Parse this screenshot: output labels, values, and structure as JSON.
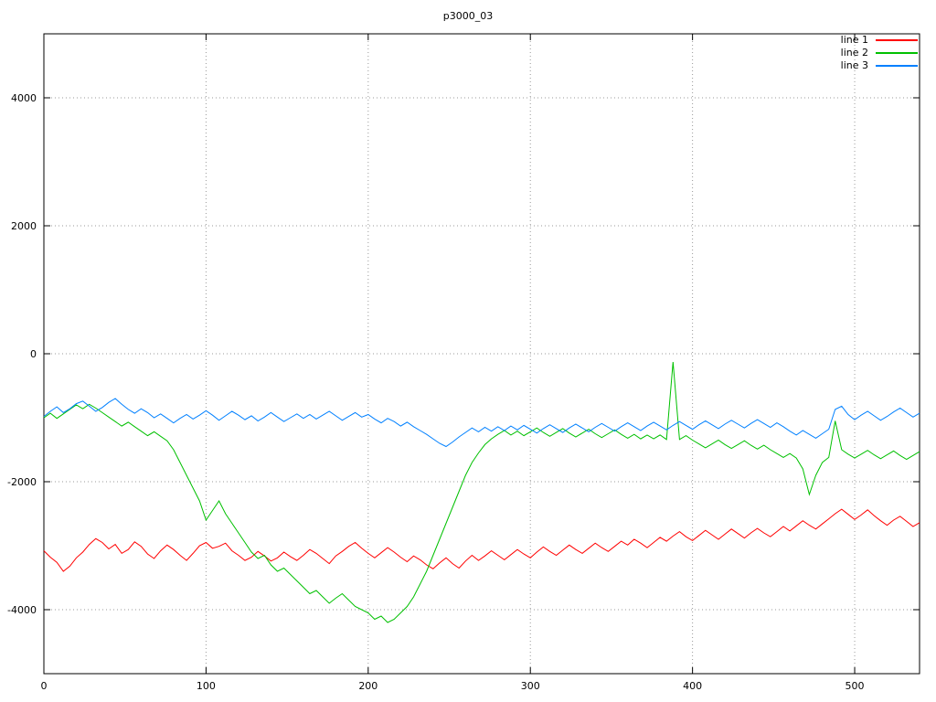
{
  "chart_data": {
    "type": "line",
    "title": "p3000_03",
    "xlabel": "",
    "ylabel": "",
    "xlim": [
      0,
      540
    ],
    "ylim": [
      -5000,
      5000
    ],
    "xticks": [
      0,
      100,
      200,
      300,
      400,
      500
    ],
    "yticks": [
      -4000,
      -2000,
      0,
      2000,
      4000
    ],
    "grid": true,
    "grid_color": "#9a9a9a",
    "border_color": "#000000",
    "legend_position": "top-right",
    "x_start": 0,
    "x_step": 4,
    "series": [
      {
        "name": "line 1",
        "color": "#ff0000",
        "values": [
          -3080,
          -3180,
          -3260,
          -3400,
          -3320,
          -3190,
          -3100,
          -2980,
          -2890,
          -2950,
          -3050,
          -2980,
          -3120,
          -3060,
          -2940,
          -3010,
          -3130,
          -3200,
          -3080,
          -2990,
          -3060,
          -3150,
          -3230,
          -3120,
          -3000,
          -2950,
          -3040,
          -3010,
          -2960,
          -3080,
          -3150,
          -3230,
          -3180,
          -3090,
          -3160,
          -3240,
          -3190,
          -3100,
          -3170,
          -3230,
          -3150,
          -3060,
          -3120,
          -3200,
          -3280,
          -3160,
          -3090,
          -3010,
          -2950,
          -3040,
          -3120,
          -3190,
          -3110,
          -3030,
          -3100,
          -3180,
          -3250,
          -3160,
          -3220,
          -3300,
          -3360,
          -3270,
          -3190,
          -3280,
          -3350,
          -3240,
          -3150,
          -3230,
          -3160,
          -3080,
          -3150,
          -3220,
          -3140,
          -3060,
          -3130,
          -3190,
          -3100,
          -3020,
          -3090,
          -3150,
          -3070,
          -2990,
          -3060,
          -3120,
          -3040,
          -2960,
          -3030,
          -3090,
          -3010,
          -2930,
          -2990,
          -2900,
          -2960,
          -3030,
          -2950,
          -2870,
          -2930,
          -2850,
          -2780,
          -2860,
          -2920,
          -2840,
          -2760,
          -2830,
          -2900,
          -2820,
          -2740,
          -2810,
          -2880,
          -2800,
          -2730,
          -2800,
          -2860,
          -2780,
          -2700,
          -2770,
          -2690,
          -2610,
          -2680,
          -2740,
          -2660,
          -2580,
          -2500,
          -2430,
          -2510,
          -2590,
          -2520,
          -2440,
          -2530,
          -2610,
          -2680,
          -2600,
          -2540,
          -2620,
          -2700,
          -2640
        ]
      },
      {
        "name": "line 2",
        "color": "#00c000",
        "values": [
          -1000,
          -930,
          -1010,
          -940,
          -870,
          -800,
          -860,
          -790,
          -850,
          -920,
          -990,
          -1060,
          -1130,
          -1070,
          -1140,
          -1210,
          -1280,
          -1220,
          -1290,
          -1360,
          -1500,
          -1700,
          -1900,
          -2100,
          -2300,
          -2600,
          -2450,
          -2300,
          -2500,
          -2650,
          -2800,
          -2950,
          -3100,
          -3200,
          -3150,
          -3300,
          -3400,
          -3350,
          -3450,
          -3550,
          -3650,
          -3750,
          -3700,
          -3800,
          -3900,
          -3820,
          -3750,
          -3850,
          -3950,
          -4000,
          -4050,
          -4150,
          -4100,
          -4200,
          -4150,
          -4050,
          -3950,
          -3800,
          -3600,
          -3400,
          -3150,
          -2900,
          -2650,
          -2400,
          -2150,
          -1900,
          -1700,
          -1550,
          -1420,
          -1330,
          -1260,
          -1200,
          -1270,
          -1210,
          -1280,
          -1220,
          -1160,
          -1230,
          -1290,
          -1230,
          -1170,
          -1240,
          -1300,
          -1240,
          -1180,
          -1250,
          -1310,
          -1250,
          -1190,
          -1260,
          -1320,
          -1260,
          -1330,
          -1270,
          -1330,
          -1270,
          -1340,
          -130,
          -1340,
          -1280,
          -1350,
          -1410,
          -1470,
          -1410,
          -1350,
          -1420,
          -1480,
          -1420,
          -1360,
          -1430,
          -1490,
          -1430,
          -1500,
          -1560,
          -1620,
          -1560,
          -1630,
          -1800,
          -2200,
          -1900,
          -1700,
          -1620,
          -1050,
          -1500,
          -1570,
          -1630,
          -1570,
          -1510,
          -1580,
          -1640,
          -1580,
          -1520,
          -1590,
          -1650,
          -1590,
          -1530
        ]
      },
      {
        "name": "line 3",
        "color": "#0080ff",
        "values": [
          -980,
          -900,
          -830,
          -920,
          -860,
          -780,
          -740,
          -820,
          -900,
          -840,
          -760,
          -700,
          -790,
          -870,
          -930,
          -860,
          -920,
          -1000,
          -940,
          -1010,
          -1080,
          -1010,
          -950,
          -1020,
          -960,
          -890,
          -960,
          -1040,
          -970,
          -900,
          -960,
          -1030,
          -970,
          -1050,
          -990,
          -920,
          -990,
          -1060,
          -1000,
          -940,
          -1010,
          -950,
          -1020,
          -960,
          -900,
          -970,
          -1040,
          -980,
          -920,
          -990,
          -950,
          -1020,
          -1080,
          -1010,
          -1060,
          -1130,
          -1070,
          -1140,
          -1200,
          -1260,
          -1330,
          -1400,
          -1450,
          -1380,
          -1300,
          -1230,
          -1160,
          -1220,
          -1150,
          -1210,
          -1140,
          -1200,
          -1130,
          -1190,
          -1120,
          -1180,
          -1240,
          -1170,
          -1110,
          -1170,
          -1230,
          -1160,
          -1100,
          -1160,
          -1220,
          -1150,
          -1090,
          -1150,
          -1210,
          -1140,
          -1080,
          -1140,
          -1200,
          -1130,
          -1070,
          -1130,
          -1190,
          -1120,
          -1060,
          -1120,
          -1180,
          -1110,
          -1050,
          -1110,
          -1170,
          -1100,
          -1040,
          -1100,
          -1160,
          -1090,
          -1030,
          -1090,
          -1150,
          -1080,
          -1140,
          -1210,
          -1270,
          -1200,
          -1260,
          -1320,
          -1250,
          -1180,
          -870,
          -820,
          -950,
          -1030,
          -960,
          -900,
          -970,
          -1040,
          -980,
          -910,
          -850,
          -920,
          -990,
          -930
        ]
      }
    ]
  }
}
